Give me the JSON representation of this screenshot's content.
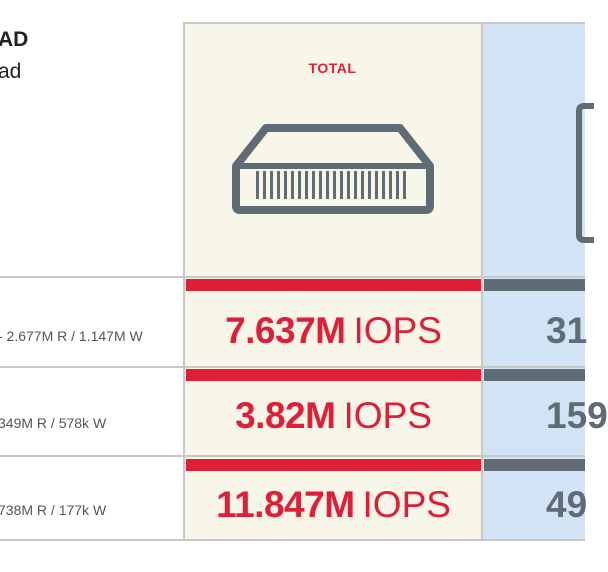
{
  "header": {
    "title_fragment": "AD",
    "subtitle_fragment": "ad"
  },
  "columns": {
    "total": {
      "label": "TOTAL"
    }
  },
  "rows": [
    {
      "label": "- 2.677M R / 1.147M W",
      "value": "7.637M",
      "unit": "IOPS",
      "partial_value": "31"
    },
    {
      "label": "349M R / 578k W",
      "value": "3.82M",
      "unit": "IOPS",
      "partial_value": "159"
    },
    {
      "label": "738M R / 177k W",
      "value": "11.847M",
      "unit": "IOPS",
      "partial_value": "49"
    }
  ],
  "colors": {
    "accent_red": "#e01e35",
    "slate": "#5f6b75",
    "total_bg": "#f8f5e9",
    "next_bg": "#d1e3f4"
  },
  "icons": {
    "total": "server-rack-icon",
    "next": "drive-icon"
  }
}
